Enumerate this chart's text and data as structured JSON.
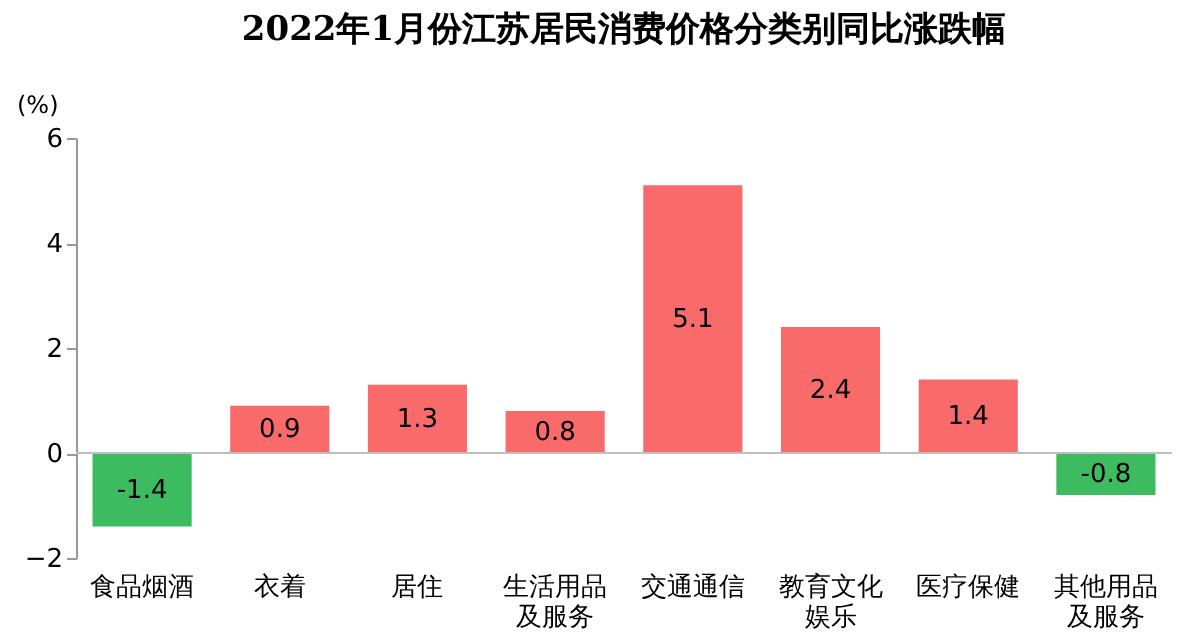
{
  "chart_data": {
    "type": "bar",
    "title": "2022年1月份江苏居民消费价格分类别同比涨跌幅",
    "ylabel": "(%)",
    "categories": [
      "食品烟酒",
      "衣着",
      "居住",
      "生活用品及服务",
      "交通通信",
      "教育文化娱乐",
      "医疗保健",
      "其他用品及服务"
    ],
    "values": [
      -1.4,
      0.9,
      1.3,
      0.8,
      5.1,
      2.4,
      1.4,
      -0.8
    ],
    "colors": [
      "#3dbb61",
      "#f96a6a",
      "#f96a6a",
      "#f96a6a",
      "#f96a6a",
      "#f96a6a",
      "#f96a6a",
      "#3dbb61"
    ],
    "ylim": [
      -2,
      6
    ],
    "yticks": [
      -2,
      0,
      2,
      4,
      6
    ],
    "grid": false,
    "data_labels": true,
    "ref_lines": [
      {
        "axis": "y",
        "value": 0,
        "color": "#bfbfbf"
      }
    ]
  }
}
